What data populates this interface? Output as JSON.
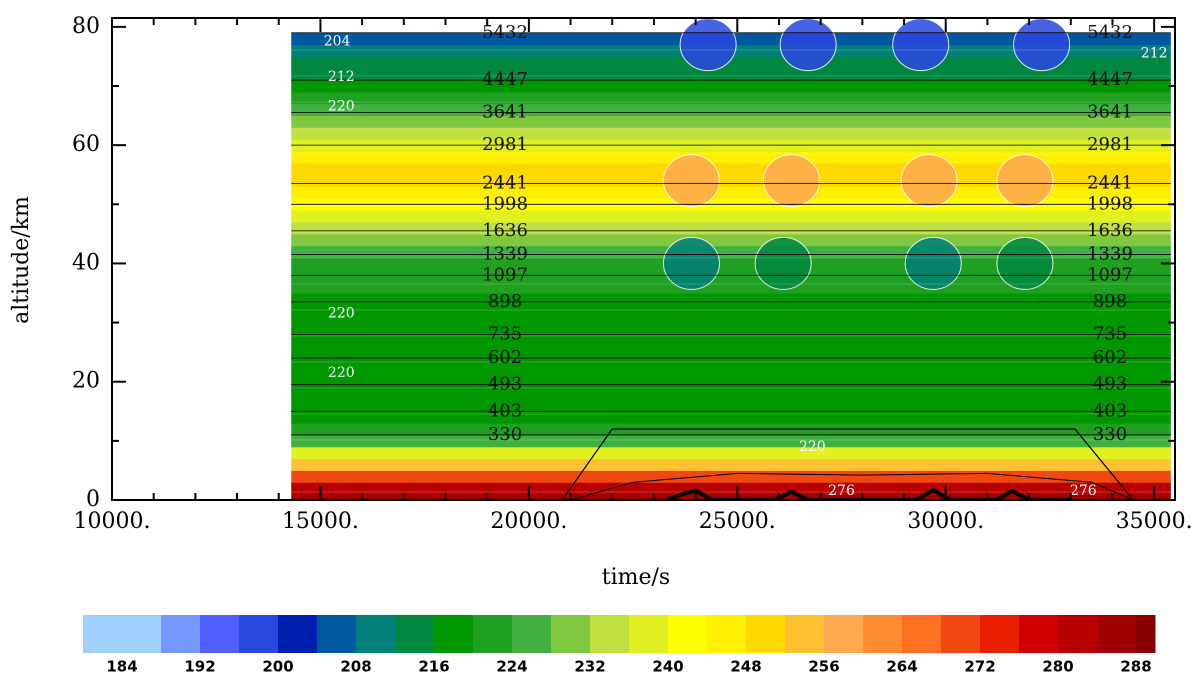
{
  "chart_data": {
    "type": "contour",
    "xlabel": "time/s",
    "ylabel": "altitude/km",
    "xlim": [
      10000,
      35500
    ],
    "ylim": [
      0,
      81.5
    ],
    "xticks": [
      {
        "value": 10000,
        "label": "10000."
      },
      {
        "value": 15000,
        "label": "15000."
      },
      {
        "value": 20000,
        "label": "20000."
      },
      {
        "value": 25000,
        "label": "25000."
      },
      {
        "value": 30000,
        "label": "30000."
      },
      {
        "value": 35000,
        "label": "35000."
      }
    ],
    "xminorticks": [
      11000,
      12000,
      13000,
      14000,
      16000,
      17000,
      18000,
      19000,
      21000,
      22000,
      23000,
      24000,
      26000,
      27000,
      28000,
      29000,
      31000,
      32000,
      33000,
      34000
    ],
    "yticks": [
      0,
      20,
      40,
      60,
      80
    ],
    "yminorticks": [
      10,
      30,
      50,
      70
    ],
    "field_x": [
      14300,
      35400
    ],
    "profile": {
      "altitude": [
        0,
        2,
        4,
        6,
        8,
        10,
        12,
        14,
        16,
        18,
        20,
        22,
        24,
        26,
        28,
        30,
        32,
        34,
        36,
        38,
        40,
        42,
        44,
        46,
        48,
        50,
        52,
        54,
        56,
        58,
        60,
        62,
        64,
        66,
        68,
        70,
        72,
        74,
        76,
        78
      ],
      "temperature": [
        286,
        280,
        268,
        252,
        238,
        226,
        220,
        218,
        218,
        218,
        218,
        218,
        218,
        218,
        218,
        218,
        218,
        218,
        220,
        220,
        222,
        224,
        228,
        232,
        236,
        240,
        246,
        250,
        250,
        244,
        236,
        232,
        228,
        224,
        220,
        218,
        214,
        212,
        208,
        204
      ]
    },
    "anomalies": [
      {
        "x": 23900,
        "y": 40,
        "temperature": 210
      },
      {
        "x": 26100,
        "y": 40,
        "temperature": 212
      },
      {
        "x": 29700,
        "y": 40,
        "temperature": 210
      },
      {
        "x": 31900,
        "y": 40,
        "temperature": 212
      },
      {
        "x": 23900,
        "y": 54,
        "temperature": 256
      },
      {
        "x": 26300,
        "y": 54,
        "temperature": 256
      },
      {
        "x": 29600,
        "y": 54,
        "temperature": 256
      },
      {
        "x": 31900,
        "y": 54,
        "temperature": 256
      },
      {
        "x": 24300,
        "y": 77,
        "temperature": 198
      },
      {
        "x": 26700,
        "y": 77,
        "temperature": 198
      },
      {
        "x": 29400,
        "y": 77,
        "temperature": 198
      },
      {
        "x": 32300,
        "y": 77,
        "temperature": 198
      }
    ],
    "isentropes": [
      {
        "value": 5432,
        "altitude": 79
      },
      {
        "value": 4447,
        "altitude": 71
      },
      {
        "value": 3641,
        "altitude": 65.5
      },
      {
        "value": 2981,
        "altitude": 60
      },
      {
        "value": 2441,
        "altitude": 53.5
      },
      {
        "value": 1998,
        "altitude": 50
      },
      {
        "value": 1636,
        "altitude": 45.5
      },
      {
        "value": 1339,
        "altitude": 41.5
      },
      {
        "value": 1097,
        "altitude": 38
      },
      {
        "value": 898,
        "altitude": 33.5
      },
      {
        "value": 735,
        "altitude": 28
      },
      {
        "value": 602,
        "altitude": 24
      },
      {
        "value": 493,
        "altitude": 19.5
      },
      {
        "value": 403,
        "altitude": 15
      },
      {
        "value": 330,
        "altitude": 11
      }
    ],
    "temperature_labels": [
      {
        "value": 204,
        "x": 15400,
        "y": 77.5
      },
      {
        "value": 212,
        "x": 15500,
        "y": 71.5
      },
      {
        "value": 220,
        "x": 15500,
        "y": 66.5
      },
      {
        "value": 220,
        "x": 15500,
        "y": 31.5
      },
      {
        "value": 220,
        "x": 15500,
        "y": 21.5
      },
      {
        "value": 220,
        "x": 26800,
        "y": 9
      },
      {
        "value": 276,
        "x": 27500,
        "y": 1.5
      },
      {
        "value": 276,
        "x": 33300,
        "y": 1.5
      },
      {
        "value": 212,
        "x": 35000,
        "y": 75.5
      }
    ],
    "outline": {
      "x": [
        20800,
        22000,
        33100,
        34500
      ],
      "y": [
        0,
        12,
        12,
        0
      ]
    },
    "outline_low": {
      "x": [
        21000,
        22500,
        25000,
        28000,
        31000,
        33500,
        34500
      ],
      "y": [
        0,
        3,
        4.5,
        4.2,
        4.5,
        3,
        0
      ]
    },
    "terrain": {
      "x": [
        23300,
        23700,
        24000,
        24400,
        25900,
        26300,
        26700,
        29300,
        29700,
        30100,
        31200,
        31600,
        32000,
        33000
      ],
      "y": [
        0,
        1,
        1.6,
        0,
        0,
        1.4,
        0,
        0,
        1.7,
        0,
        0,
        1.5,
        0,
        0
      ]
    },
    "colorbar": {
      "levels": [
        180,
        188,
        192,
        196,
        200,
        204,
        208,
        212,
        216,
        220,
        224,
        228,
        232,
        236,
        240,
        244,
        248,
        252,
        256,
        260,
        264,
        268,
        272,
        276,
        280,
        284,
        288,
        290
      ],
      "colors": [
        "#a0d0ff",
        "#7799ff",
        "#5060ff",
        "#2848e0",
        "#0020b0",
        "#0058a0",
        "#008078",
        "#008840",
        "#009800",
        "#20a020",
        "#40b040",
        "#80c840",
        "#c0e040",
        "#e0f020",
        "#ffff00",
        "#fff000",
        "#ffd800",
        "#ffc030",
        "#ffa850",
        "#ff8c30",
        "#ff7020",
        "#f04810",
        "#e82000",
        "#d00000",
        "#b80000",
        "#a00000",
        "#880000"
      ],
      "ticks": [
        184,
        192,
        200,
        208,
        216,
        224,
        232,
        240,
        248,
        256,
        264,
        272,
        280,
        288
      ]
    }
  }
}
